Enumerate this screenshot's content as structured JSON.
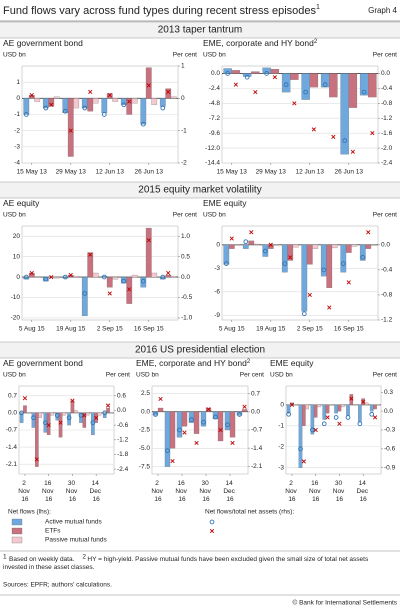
{
  "header": {
    "title": "Fund flows vary across fund types during recent stress episodes",
    "title_note": "1",
    "graph_label": "Graph 4"
  },
  "sections": [
    "2013 taper tantrum",
    "2015 equity market volatility",
    "2016 US presidential election"
  ],
  "legend": {
    "lhs_title": "Net flows (lhs):",
    "rhs_title": "Net flows/total net assets (rhs):",
    "entries": [
      "Active mutual funds",
      "ETFs",
      "Passive mutual funds"
    ]
  },
  "footnotes": [
    {
      "mark": "1",
      "text": "Based on weekly data."
    },
    {
      "mark": "2",
      "text": "HY = high-yield. Passive mutual funds have been excluded given the small size of total net assets invested in these asset classes."
    }
  ],
  "sources": "Sources: EPFR; authors' calculations.",
  "copyright": "© Bank for International Settlements",
  "chart_data": [
    {
      "type": "bar",
      "title": "AE government bond",
      "ylabel": "USD bn",
      "y2label": "Per cent",
      "categories": [
        "15 May 13",
        null,
        "29 May 13",
        null,
        "12 Jun 13",
        null,
        "26 Jun 13",
        null
      ],
      "ylim": [
        -4,
        2
      ],
      "yticks": [
        -4,
        -3,
        -2,
        -1,
        0,
        1
      ],
      "y2lim": [
        -2,
        1
      ],
      "y2ticks": [
        -2,
        -1,
        0,
        1
      ],
      "series": [
        {
          "color": "#6fa8dc",
          "values": [
            -1.0,
            -0.6,
            -0.9,
            -0.6,
            -0.9,
            -0.4,
            -1.6,
            -0.5
          ]
        },
        {
          "color": "#c9727f",
          "values": [
            0.2,
            -0.5,
            -3.6,
            -0.8,
            0.3,
            -1.0,
            1.9,
            0.6
          ]
        },
        {
          "color": "#f3c9cf",
          "values": [
            -0.2,
            0.1,
            -0.6,
            -0.3,
            -0.2,
            -0.3,
            -0.4,
            0.1
          ]
        },
        {
          "axis": "y2",
          "marker": "circle",
          "color": "#2e75b6",
          "values": [
            -0.5,
            -0.3,
            -0.4,
            -0.3,
            -0.5,
            -0.2,
            -0.8,
            -0.3
          ]
        },
        {
          "axis": "y2",
          "marker": "cross",
          "color": "#c00000",
          "values": [
            0.1,
            -0.2,
            -1.0,
            0.2,
            0.1,
            -0.1,
            0.4,
            0.2
          ]
        }
      ]
    },
    {
      "type": "bar",
      "title": "EME, corporate and HY bond",
      "title_note": "2",
      "ylabel": "USD bn",
      "y2label": "Per cent",
      "categories": [
        "15 May 13",
        null,
        "29 May 13",
        null,
        "12 Jun 13",
        null,
        "26 Jun 13",
        null
      ],
      "ylim": [
        -14.4,
        1.2
      ],
      "yticks": [
        -14.4,
        {
          "value": -12,
          "label": "-12.0"
        },
        -9.6,
        -7.2,
        -4.8,
        -2.4,
        {
          "value": 0,
          "label": "0.0"
        }
      ],
      "y2lim": [
        -2.4,
        0.2
      ],
      "y2ticks": [
        -2.4,
        {
          "value": -2,
          "label": "-2.0"
        },
        -1.6,
        -1.2,
        -0.8,
        -0.4,
        {
          "value": 0,
          "label": "0.0"
        }
      ],
      "series": [
        {
          "color": "#6fa8dc",
          "values": [
            0.8,
            -0.5,
            0.9,
            -3.0,
            -4.2,
            -2.2,
            -13.0,
            -3.5
          ]
        },
        {
          "color": "#c9727f",
          "values": [
            0.5,
            0.3,
            0.7,
            -1.0,
            -2.2,
            -3.8,
            -5.5,
            -3.8
          ]
        },
        {
          "axis": "y2",
          "marker": "circle",
          "color": "#2e75b6",
          "values": [
            0.0,
            -0.1,
            0.0,
            -0.3,
            -0.5,
            -0.3,
            -1.8,
            -0.5
          ]
        },
        {
          "axis": "y2",
          "marker": "cross",
          "color": "#c00000",
          "values": [
            -0.3,
            -0.5,
            -0.1,
            -0.8,
            -1.5,
            -1.7,
            -2.1,
            -1.6
          ]
        }
      ]
    },
    {
      "type": "bar",
      "title": "AE equity",
      "ylabel": "USD bn",
      "y2label": "Per cent",
      "categories": [
        "5 Aug 15",
        null,
        "19 Aug 15",
        null,
        "2 Sep 15",
        null,
        "16 Sep 15",
        null
      ],
      "ylim": [
        -21,
        25
      ],
      "yticks": [
        -20,
        -10,
        0,
        10,
        20
      ],
      "y2lim": [
        -1.05,
        1.25
      ],
      "y2ticks": [
        {
          "value": -1,
          "label": "-1.0"
        },
        -0.5,
        {
          "value": 0,
          "label": "0.0"
        },
        0.5,
        {
          "value": 1,
          "label": "1.0"
        }
      ],
      "series": [
        {
          "color": "#6fa8dc",
          "values": [
            -1,
            -2,
            -0.5,
            -19,
            0.5,
            -3,
            -5,
            -1
          ]
        },
        {
          "color": "#c9727f",
          "values": [
            2,
            0,
            1,
            12,
            -5,
            -13,
            24,
            1
          ]
        },
        {
          "color": "#f3c9cf",
          "values": [
            0,
            -0.5,
            0.5,
            2,
            -1,
            1,
            2,
            0.5
          ]
        },
        {
          "axis": "y2",
          "marker": "circle",
          "color": "#2e75b6",
          "values": [
            0,
            -0.05,
            0,
            -0.4,
            0,
            -0.1,
            -0.1,
            0
          ]
        },
        {
          "axis": "y2",
          "marker": "cross",
          "color": "#c00000",
          "values": [
            0.1,
            0,
            0.05,
            0.55,
            -0.4,
            -0.3,
            0.9,
            0.1
          ]
        }
      ]
    },
    {
      "type": "bar",
      "title": "EME equity",
      "ylabel": "USD bn",
      "y2label": "Per cent",
      "categories": [
        "5 Aug 15",
        null,
        "19 Aug 15",
        null,
        "2 Sep 15",
        null,
        "16 Sep 15",
        null
      ],
      "ylim": [
        -9.6,
        2.4
      ],
      "yticks": [
        -9,
        -6,
        -3,
        0
      ],
      "y2lim": [
        -1.2,
        0.3
      ],
      "y2ticks": [
        -1.2,
        -0.8,
        -0.4,
        {
          "value": 0,
          "label": "0.0"
        }
      ],
      "series": [
        {
          "color": "#6fa8dc",
          "values": [
            -2.5,
            -0.5,
            -1.5,
            -3.5,
            -8.5,
            -4,
            -3.5,
            -2
          ]
        },
        {
          "color": "#c9727f",
          "values": [
            -0.5,
            0.5,
            -0.5,
            -2,
            -2.5,
            -5.5,
            -1,
            -0.5
          ]
        },
        {
          "color": "#f3c9cf",
          "values": [
            -0.1,
            0.1,
            0,
            -0.3,
            -0.5,
            -0.4,
            -0.2,
            0
          ]
        },
        {
          "axis": "y2",
          "marker": "circle",
          "color": "#2e75b6",
          "values": [
            -0.3,
            0.05,
            -0.1,
            -0.3,
            -1.1,
            -0.4,
            -0.3,
            -0.2
          ]
        },
        {
          "axis": "y2",
          "marker": "cross",
          "color": "#c00000",
          "values": [
            0.1,
            0.2,
            0.0,
            -0.2,
            -0.8,
            -1.0,
            -0.6,
            0.2
          ]
        }
      ]
    },
    {
      "type": "bar",
      "title": "AE government bond",
      "ylabel": "USD bn",
      "y2label": "Per cent",
      "categories": [
        "2 Nov 16",
        null,
        "16 Nov 16",
        null,
        "30 Nov 16",
        null,
        "14 Dec 16",
        null
      ],
      "ylim": [
        -2.5,
        1.1
      ],
      "yticks": [
        -2.1,
        -1.4,
        -0.7,
        {
          "value": 0,
          "label": "0.0"
        },
        0.7
      ],
      "y2lim": [
        -2.6,
        1.0
      ],
      "y2ticks": [
        -2.4,
        -1.8,
        -1.2,
        -0.6,
        {
          "value": 0,
          "label": "0.0"
        },
        0.6
      ],
      "series": [
        {
          "color": "#6fa8dc",
          "values": [
            -0.4,
            -0.6,
            -0.8,
            -0.3,
            -0.5,
            -0.4,
            -0.9,
            -0.2
          ]
        },
        {
          "color": "#c9727f",
          "values": [
            0.3,
            -2.2,
            -0.9,
            -1.0,
            0.5,
            -0.6,
            -0.4,
            0.2
          ]
        },
        {
          "color": "#f3c9cf",
          "values": [
            0.0,
            -0.2,
            -0.1,
            -0.1,
            0.1,
            -0.1,
            -0.1,
            0
          ]
        },
        {
          "axis": "y2",
          "marker": "circle",
          "color": "#2e75b6",
          "values": [
            -0.1,
            -0.3,
            -0.5,
            -0.2,
            -0.3,
            -0.2,
            -0.5,
            -0.1
          ]
        },
        {
          "axis": "y2",
          "marker": "cross",
          "color": "#c00000",
          "values": [
            0.5,
            -2.0,
            -0.6,
            -0.5,
            0.4,
            -0.2,
            -0.3,
            0.2
          ]
        }
      ]
    },
    {
      "type": "bar",
      "title": "EME, corporate and HY bond",
      "title_note": "2",
      "ylabel": "USD bn",
      "y2label": "Per cent",
      "categories": [
        "2 Nov 16",
        null,
        "16 Nov 16",
        null,
        "30 Nov 16",
        null,
        "14 Dec 16",
        null
      ],
      "ylim": [
        -8.5,
        3.5
      ],
      "yticks": [
        -7.5,
        {
          "value": -5,
          "label": "-5.0"
        },
        -2.5,
        {
          "value": 0,
          "label": "0.0"
        },
        2.5
      ],
      "y2lim": [
        -2.4,
        1.0
      ],
      "y2ticks": [
        -2.1,
        -1.4,
        -0.7,
        {
          "value": 0,
          "label": "0.0"
        },
        0.7
      ],
      "series": [
        {
          "color": "#6fa8dc",
          "values": [
            -0.5,
            -7.5,
            -3.5,
            -1.5,
            -2,
            -1,
            -2.5,
            -0.5
          ]
        },
        {
          "color": "#c9727f",
          "values": [
            0.5,
            -5,
            -2,
            -3,
            0.5,
            -4,
            -3.5,
            0.3
          ]
        },
        {
          "axis": "y2",
          "marker": "circle",
          "color": "#2e75b6",
          "values": [
            -0.1,
            -1.5,
            -0.7,
            -0.3,
            -0.4,
            -0.2,
            -0.5,
            -0.1
          ]
        },
        {
          "axis": "y2",
          "marker": "cross",
          "color": "#c00000",
          "values": [
            0.5,
            -1.9,
            -0.8,
            -1.2,
            0.1,
            -0.7,
            -1.2,
            0.2
          ]
        }
      ]
    },
    {
      "type": "bar",
      "title": "EME equity",
      "ylabel": "USD bn",
      "y2label": "Per cent",
      "categories": [
        "2 Nov 16",
        null,
        "16 Nov 16",
        null,
        "30 Nov 16",
        null,
        "14 Dec 16",
        null
      ],
      "ylim": [
        -3.3,
        0.9
      ],
      "yticks": [
        -3,
        -2,
        -1,
        0
      ],
      "y2lim": [
        -1.0,
        0.4
      ],
      "y2ticks": [
        -0.9,
        -0.6,
        -0.3,
        {
          "value": 0,
          "label": "0.0"
        },
        0.3
      ],
      "series": [
        {
          "color": "#6fa8dc",
          "values": [
            -0.4,
            -3.0,
            -1.4,
            -0.7,
            -0.4,
            -0.5,
            -0.8,
            -0.3
          ]
        },
        {
          "color": "#c9727f",
          "values": [
            0.1,
            -1.0,
            -0.6,
            -0.4,
            -0.3,
            0.5,
            0.3,
            -0.2
          ]
        },
        {
          "color": "#f3c9cf",
          "values": [
            0,
            -0.2,
            -0.1,
            0,
            -0.1,
            0,
            0.1,
            0
          ]
        },
        {
          "axis": "y2",
          "marker": "circle",
          "color": "#2e75b6",
          "values": [
            -0.05,
            -0.6,
            -0.3,
            -0.2,
            -0.1,
            -0.1,
            -0.2,
            -0.05
          ]
        },
        {
          "axis": "y2",
          "marker": "cross",
          "color": "#c00000",
          "values": [
            0.1,
            -0.8,
            -0.3,
            -0.1,
            -0.2,
            0.2,
            0.15,
            -0.1
          ]
        }
      ]
    }
  ]
}
